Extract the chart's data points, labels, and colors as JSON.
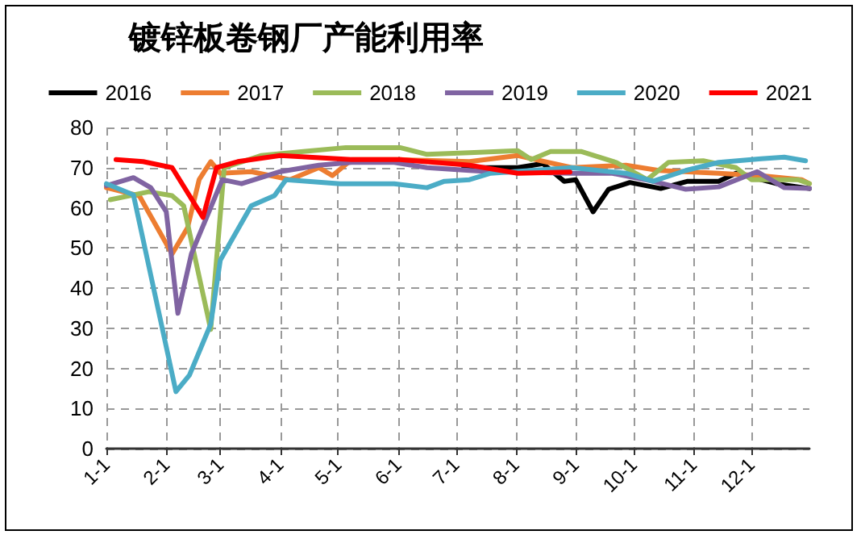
{
  "chart_data": {
    "type": "line",
    "title": "镀锌板卷钢厂产能利用率",
    "xlim": [
      "--01-01",
      "--12-31"
    ],
    "xticks": [
      {
        "value": "--01-01",
        "label": "1-1"
      },
      {
        "value": "--02-01",
        "label": "2-1"
      },
      {
        "value": "--03-01",
        "label": "3-1"
      },
      {
        "value": "--04-01",
        "label": "4-1"
      },
      {
        "value": "--05-01",
        "label": "5-1"
      },
      {
        "value": "--06-01",
        "label": "6-1"
      },
      {
        "value": "--07-01",
        "label": "7-1"
      },
      {
        "value": "--08-01",
        "label": "8-1"
      },
      {
        "value": "--09-01",
        "label": "9-1"
      },
      {
        "value": "--10-01",
        "label": "10-1"
      },
      {
        "value": "--11-01",
        "label": "11-1"
      },
      {
        "value": "--12-01",
        "label": "12-1"
      }
    ],
    "ylim": [
      0,
      80
    ],
    "yticks": [
      0,
      10,
      20,
      30,
      40,
      50,
      60,
      70,
      80
    ],
    "grid": true,
    "legend": "top",
    "marker": "none",
    "line_style": "solid",
    "series": [
      {
        "name": "2016",
        "color": "#000000",
        "x": [
          "--07-05",
          "--07-19",
          "--08-02",
          "--08-15",
          "--08-26",
          "--09-01",
          "--09-10",
          "--09-18",
          "--09-29",
          "--10-15",
          "--10-29",
          "--11-14",
          "--11-23",
          "--12-15",
          "--12-31"
        ],
        "values": [
          70,
          70,
          70,
          71,
          66.6,
          67,
          59,
          64.6,
          66.3,
          64.8,
          66.6,
          66.6,
          68.6,
          65.9,
          64.8
        ]
      },
      {
        "name": "2017",
        "color": "#ed7d31",
        "x": [
          "--01-01",
          "--01-18",
          "--02-04",
          "--02-12",
          "--02-18",
          "--02-24",
          "--03-01",
          "--03-17",
          "--04-06",
          "--04-21",
          "--04-28",
          "--05-08",
          "--06-02",
          "--07-08",
          "--08-02",
          "--08-30",
          "--09-27",
          "--10-14",
          "--11-14",
          "--12-06",
          "--12-27",
          "--12-31"
        ],
        "values": [
          65,
          63,
          48.5,
          55,
          67,
          71.5,
          68.6,
          69,
          67,
          70,
          68,
          72,
          72,
          71.5,
          73,
          70,
          70.6,
          69.3,
          68.6,
          68,
          67,
          66
        ]
      },
      {
        "name": "2018",
        "color": "#9bbb59",
        "x": [
          "--01-03",
          "--01-23",
          "--02-04",
          "--02-10",
          "--02-24",
          "--03-03",
          "--03-22",
          "--04-13",
          "--05-05",
          "--06-02",
          "--06-16",
          "--07-08",
          "--08-02",
          "--08-09",
          "--08-19",
          "--09-04",
          "--09-22",
          "--10-08",
          "--10-19",
          "--11-06",
          "--11-23",
          "--12-01",
          "--12-25",
          "--12-31"
        ],
        "values": [
          62,
          64,
          63,
          60.5,
          29.7,
          70,
          73,
          74,
          75,
          75,
          73.3,
          73.7,
          74.2,
          72,
          74,
          74,
          71.3,
          67,
          71.3,
          71.7,
          70,
          67,
          67,
          66
        ]
      },
      {
        "name": "2019",
        "color": "#8064a2",
        "x": [
          "--01-01",
          "--01-15",
          "--01-24",
          "--02-01",
          "--02-07",
          "--02-14",
          "--03-02",
          "--03-12",
          "--04-01",
          "--04-21",
          "--05-08",
          "--05-30",
          "--06-16",
          "--07-08",
          "--07-19",
          "--08-30",
          "--09-20",
          "--10-11",
          "--10-28",
          "--11-14",
          "--12-04",
          "--12-18",
          "--12-31"
        ],
        "values": [
          65.5,
          67.5,
          65,
          59,
          33.7,
          48.5,
          67,
          66,
          69,
          70.6,
          71.3,
          71.3,
          70,
          69.3,
          69,
          68.6,
          68.6,
          66.6,
          64.6,
          65.2,
          69,
          65,
          64.8
        ]
      },
      {
        "name": "2020",
        "color": "#4bacc6",
        "x": [
          "--01-01",
          "--01-15",
          "--02-06",
          "--02-13",
          "--02-24",
          "--03-01",
          "--03-17",
          "--03-29",
          "--04-04",
          "--05-02",
          "--05-19",
          "--05-30",
          "--06-16",
          "--06-25",
          "--07-08",
          "--07-19",
          "--08-30",
          "--09-27",
          "--10-11",
          "--10-28",
          "--11-14",
          "--12-06",
          "--12-18",
          "--12-29"
        ],
        "values": [
          66,
          63.2,
          14.2,
          18.3,
          31,
          47,
          60.5,
          63,
          67,
          66,
          66,
          66,
          65,
          66.6,
          67,
          68.6,
          70,
          68.6,
          66.6,
          69.3,
          71.3,
          72.2,
          72.6,
          71.7
        ]
      },
      {
        "name": "2021",
        "color": "#ff0000",
        "x": [
          "--01-06",
          "--01-20",
          "--02-04",
          "--02-20",
          "--02-27",
          "--03-10",
          "--04-01",
          "--05-08",
          "--06-02",
          "--07-08",
          "--08-02",
          "--08-29"
        ],
        "values": [
          72,
          71.5,
          70,
          57.6,
          70,
          71.5,
          73,
          72,
          72,
          70.6,
          68.6,
          68.9
        ]
      }
    ]
  }
}
